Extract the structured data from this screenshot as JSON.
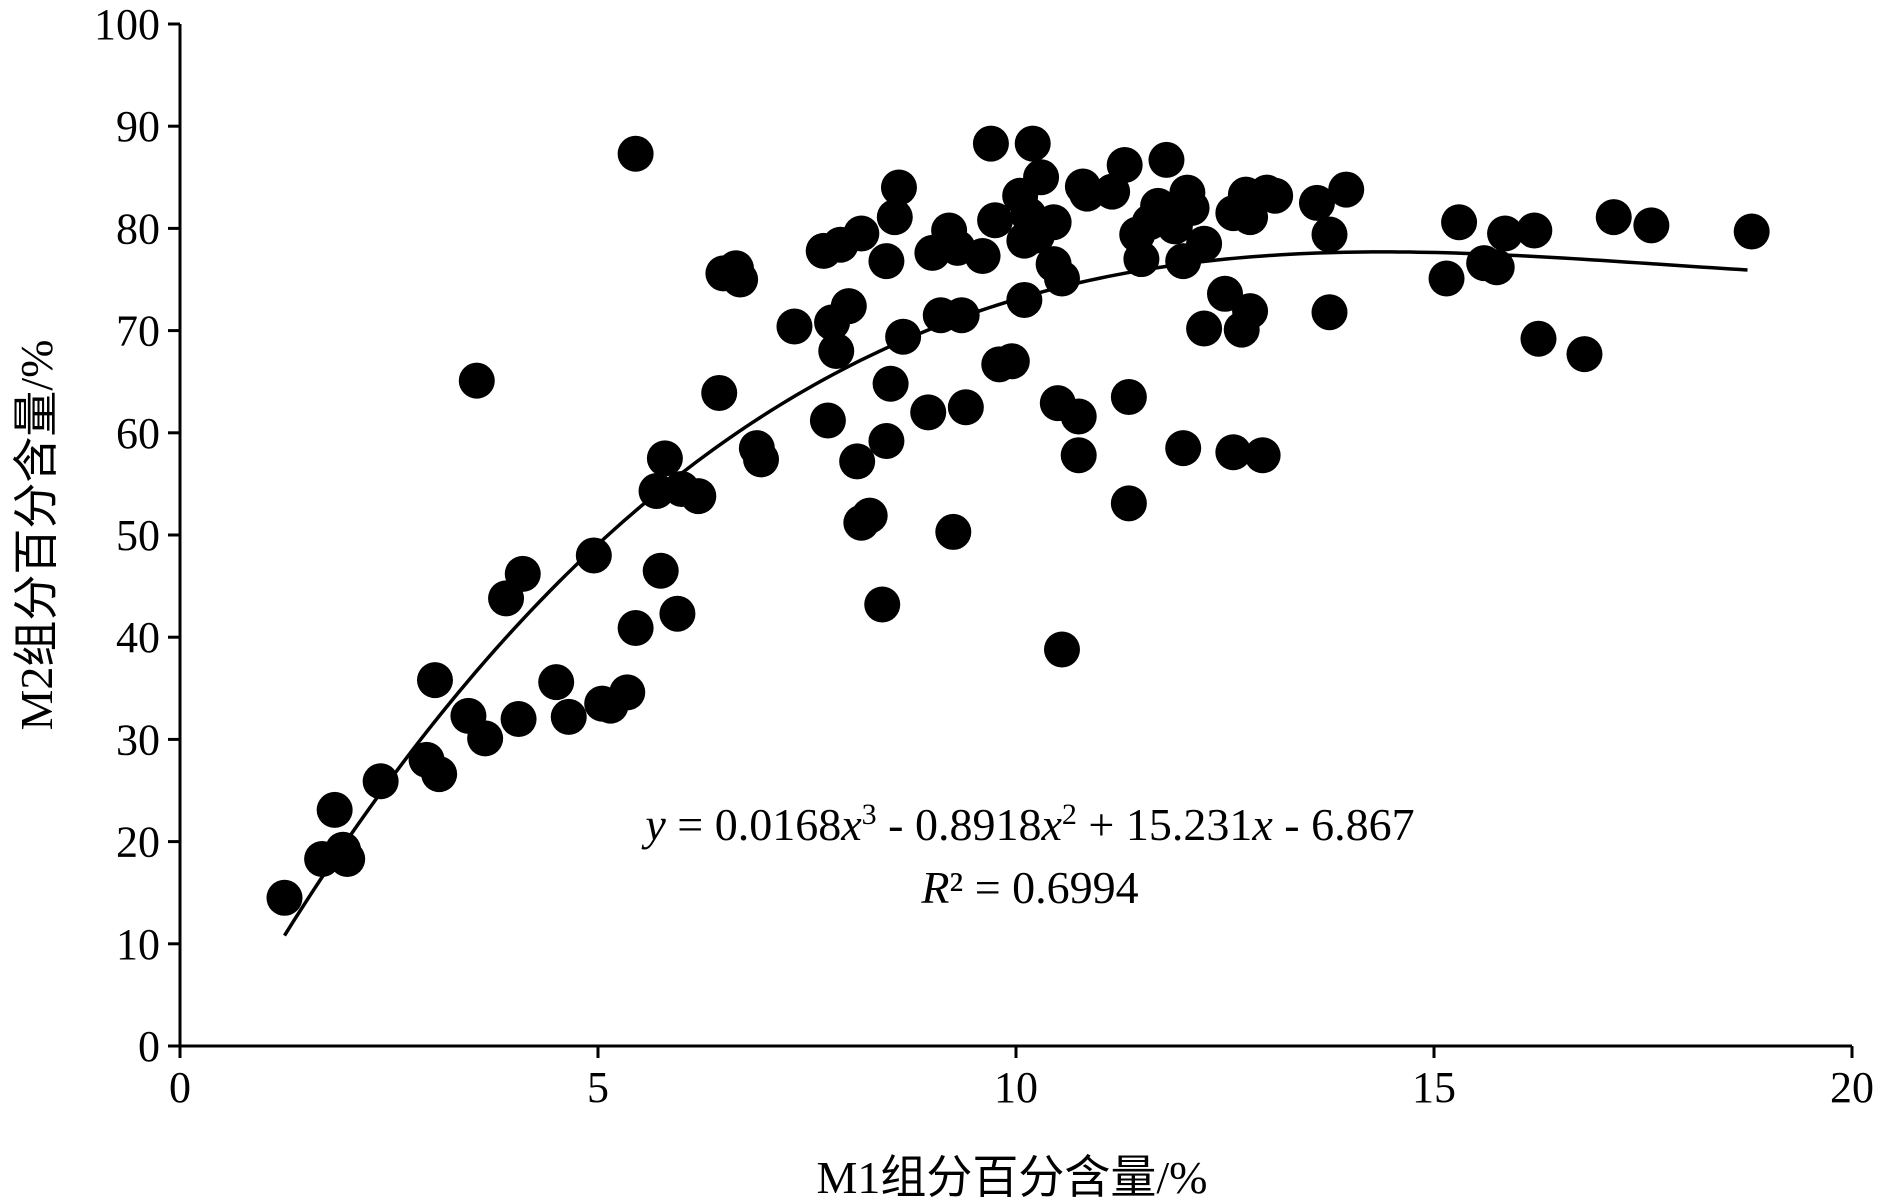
{
  "chart_data": {
    "type": "scatter",
    "title": "",
    "xlabel": "M1组分百分含量/%",
    "ylabel": "M2组分百分含量/%",
    "xlim": [
      0,
      20
    ],
    "ylim": [
      0,
      100
    ],
    "x_ticks": [
      "0",
      "5",
      "10",
      "15",
      "20"
    ],
    "y_ticks": [
      "0",
      "10",
      "20",
      "30",
      "40",
      "50",
      "60",
      "70",
      "80",
      "90",
      "100"
    ],
    "grid": false,
    "legend": "none",
    "marker_color": "#000000",
    "trendline": {
      "type": "polynomial-3",
      "coefficients": [
        0.0168,
        -0.8918,
        15.231,
        -6.867
      ],
      "x_range": [
        1.25,
        18.75
      ],
      "equation": {
        "y": "y",
        "eq1": " = 0.0168",
        "x1": "x",
        "p3": "3",
        "eq2": " - 0.8918",
        "x2": "x",
        "p2": "2",
        "eq3": " + 15.231",
        "x3": "x",
        "eq4": " - 6.867",
        "r": "R",
        "r2sup": "²",
        "req": " = 0.6994"
      }
    },
    "points": [
      {
        "x": 1.25,
        "y": 14.5
      },
      {
        "x": 1.7,
        "y": 18.3
      },
      {
        "x": 1.85,
        "y": 23.1
      },
      {
        "x": 1.95,
        "y": 19.2
      },
      {
        "x": 2.0,
        "y": 18.3
      },
      {
        "x": 2.4,
        "y": 25.9
      },
      {
        "x": 2.95,
        "y": 28.0
      },
      {
        "x": 3.05,
        "y": 35.8
      },
      {
        "x": 3.1,
        "y": 26.6
      },
      {
        "x": 3.45,
        "y": 32.3
      },
      {
        "x": 3.55,
        "y": 65.1
      },
      {
        "x": 3.65,
        "y": 30.1
      },
      {
        "x": 3.9,
        "y": 43.8
      },
      {
        "x": 4.05,
        "y": 32.0
      },
      {
        "x": 4.1,
        "y": 46.2
      },
      {
        "x": 4.5,
        "y": 35.6
      },
      {
        "x": 4.65,
        "y": 32.2
      },
      {
        "x": 4.95,
        "y": 48.0
      },
      {
        "x": 5.05,
        "y": 33.5
      },
      {
        "x": 5.15,
        "y": 33.3
      },
      {
        "x": 5.35,
        "y": 34.6
      },
      {
        "x": 5.45,
        "y": 40.9
      },
      {
        "x": 5.45,
        "y": 87.3
      },
      {
        "x": 5.7,
        "y": 54.3
      },
      {
        "x": 5.75,
        "y": 46.5
      },
      {
        "x": 5.8,
        "y": 57.5
      },
      {
        "x": 5.95,
        "y": 42.3
      },
      {
        "x": 6.0,
        "y": 54.5
      },
      {
        "x": 6.2,
        "y": 53.8
      },
      {
        "x": 6.45,
        "y": 63.9
      },
      {
        "x": 6.5,
        "y": 75.6
      },
      {
        "x": 6.65,
        "y": 76.1
      },
      {
        "x": 6.7,
        "y": 75.0
      },
      {
        "x": 6.9,
        "y": 58.5
      },
      {
        "x": 6.95,
        "y": 57.4
      },
      {
        "x": 7.35,
        "y": 70.4
      },
      {
        "x": 7.7,
        "y": 77.8
      },
      {
        "x": 7.75,
        "y": 61.2
      },
      {
        "x": 7.8,
        "y": 70.8
      },
      {
        "x": 7.85,
        "y": 68.0
      },
      {
        "x": 7.9,
        "y": 78.4
      },
      {
        "x": 8.0,
        "y": 72.4
      },
      {
        "x": 8.1,
        "y": 57.2
      },
      {
        "x": 8.15,
        "y": 79.5
      },
      {
        "x": 8.15,
        "y": 51.2
      },
      {
        "x": 8.25,
        "y": 51.9
      },
      {
        "x": 8.4,
        "y": 43.2
      },
      {
        "x": 8.45,
        "y": 59.2
      },
      {
        "x": 8.45,
        "y": 76.8
      },
      {
        "x": 8.5,
        "y": 64.8
      },
      {
        "x": 8.55,
        "y": 81.1
      },
      {
        "x": 8.6,
        "y": 84.0
      },
      {
        "x": 8.65,
        "y": 69.4
      },
      {
        "x": 8.95,
        "y": 62.0
      },
      {
        "x": 9.0,
        "y": 77.6
      },
      {
        "x": 9.1,
        "y": 71.5
      },
      {
        "x": 9.2,
        "y": 79.8
      },
      {
        "x": 9.25,
        "y": 50.3
      },
      {
        "x": 9.3,
        "y": 78.1
      },
      {
        "x": 9.35,
        "y": 71.5
      },
      {
        "x": 9.4,
        "y": 62.5
      },
      {
        "x": 9.6,
        "y": 77.3
      },
      {
        "x": 9.7,
        "y": 88.3
      },
      {
        "x": 9.75,
        "y": 80.8
      },
      {
        "x": 9.8,
        "y": 66.7
      },
      {
        "x": 9.95,
        "y": 67.0
      },
      {
        "x": 10.05,
        "y": 83.2
      },
      {
        "x": 10.1,
        "y": 78.8
      },
      {
        "x": 10.1,
        "y": 73.0
      },
      {
        "x": 10.15,
        "y": 81.3
      },
      {
        "x": 10.2,
        "y": 88.3
      },
      {
        "x": 10.25,
        "y": 79.3
      },
      {
        "x": 10.3,
        "y": 85.0
      },
      {
        "x": 10.45,
        "y": 80.6
      },
      {
        "x": 10.45,
        "y": 76.5
      },
      {
        "x": 10.5,
        "y": 62.9
      },
      {
        "x": 10.55,
        "y": 75.1
      },
      {
        "x": 10.55,
        "y": 38.8
      },
      {
        "x": 10.75,
        "y": 61.6
      },
      {
        "x": 10.75,
        "y": 57.8
      },
      {
        "x": 10.8,
        "y": 84.1
      },
      {
        "x": 10.85,
        "y": 83.4
      },
      {
        "x": 11.15,
        "y": 83.6
      },
      {
        "x": 11.3,
        "y": 86.2
      },
      {
        "x": 11.35,
        "y": 53.1
      },
      {
        "x": 11.35,
        "y": 63.5
      },
      {
        "x": 11.45,
        "y": 79.4
      },
      {
        "x": 11.5,
        "y": 77.0
      },
      {
        "x": 11.6,
        "y": 80.6
      },
      {
        "x": 11.7,
        "y": 82.2
      },
      {
        "x": 11.8,
        "y": 86.7
      },
      {
        "x": 11.9,
        "y": 80.2
      },
      {
        "x": 12.0,
        "y": 76.8
      },
      {
        "x": 12.0,
        "y": 58.5
      },
      {
        "x": 12.05,
        "y": 83.5
      },
      {
        "x": 12.1,
        "y": 82.0
      },
      {
        "x": 12.25,
        "y": 78.5
      },
      {
        "x": 12.25,
        "y": 70.2
      },
      {
        "x": 12.5,
        "y": 73.6
      },
      {
        "x": 12.6,
        "y": 81.5
      },
      {
        "x": 12.6,
        "y": 58.1
      },
      {
        "x": 12.7,
        "y": 70.1
      },
      {
        "x": 12.75,
        "y": 83.3
      },
      {
        "x": 12.8,
        "y": 71.9
      },
      {
        "x": 12.8,
        "y": 81.1
      },
      {
        "x": 12.95,
        "y": 57.8
      },
      {
        "x": 13.0,
        "y": 83.5
      },
      {
        "x": 13.1,
        "y": 83.2
      },
      {
        "x": 13.6,
        "y": 82.5
      },
      {
        "x": 13.75,
        "y": 79.4
      },
      {
        "x": 13.75,
        "y": 71.8
      },
      {
        "x": 13.95,
        "y": 83.8
      },
      {
        "x": 15.15,
        "y": 75.1
      },
      {
        "x": 15.3,
        "y": 80.6
      },
      {
        "x": 15.6,
        "y": 76.6
      },
      {
        "x": 15.75,
        "y": 76.2
      },
      {
        "x": 15.85,
        "y": 79.5
      },
      {
        "x": 16.2,
        "y": 79.8
      },
      {
        "x": 16.25,
        "y": 69.2
      },
      {
        "x": 16.8,
        "y": 67.7
      },
      {
        "x": 17.15,
        "y": 81.1
      },
      {
        "x": 17.6,
        "y": 80.3
      },
      {
        "x": 18.8,
        "y": 79.7
      }
    ]
  }
}
